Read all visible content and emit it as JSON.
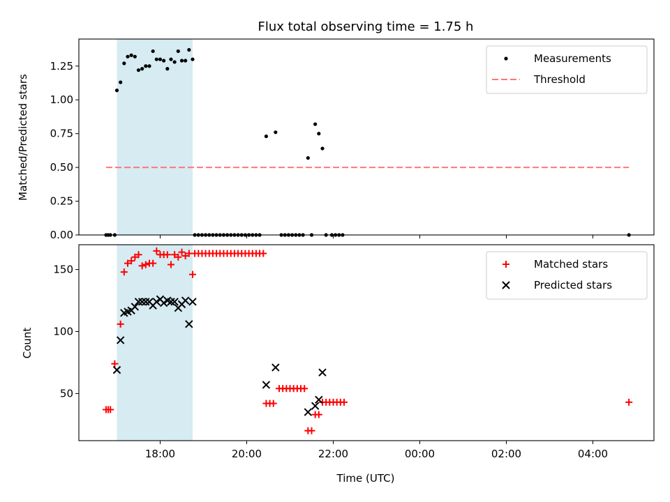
{
  "chart_data": [
    {
      "type": "scatter",
      "title": "Flux total observing time = 1.75 h",
      "xlabel": "",
      "ylabel": "Matched/Predicted stars",
      "ylim": [
        0,
        1.45
      ],
      "yticks": [
        "0.00",
        "0.25",
        "0.50",
        "0.75",
        "1.00",
        "1.25"
      ],
      "legend": {
        "position": "top-right",
        "entries": [
          "Measurements",
          "Threshold"
        ]
      },
      "threshold": {
        "value": 0.5,
        "x_start": "16:45",
        "x_end": "04:50",
        "color": "#ff7777"
      },
      "shaded_region": {
        "x_start": "17:00",
        "x_end": "18:45",
        "color": "#add8e6"
      },
      "series": [
        {
          "name": "Measurements",
          "marker": "dot",
          "color": "#000000",
          "points": [
            [
              "16:45",
              0
            ],
            [
              "16:48",
              0
            ],
            [
              "16:51",
              0
            ],
            [
              "16:57",
              0
            ],
            [
              "17:00",
              1.07
            ],
            [
              "17:05",
              1.13
            ],
            [
              "17:10",
              1.27
            ],
            [
              "17:15",
              1.32
            ],
            [
              "17:20",
              1.33
            ],
            [
              "17:25",
              1.32
            ],
            [
              "17:30",
              1.22
            ],
            [
              "17:35",
              1.23
            ],
            [
              "17:40",
              1.25
            ],
            [
              "17:45",
              1.25
            ],
            [
              "17:50",
              1.36
            ],
            [
              "17:55",
              1.3
            ],
            [
              "18:00",
              1.3
            ],
            [
              "18:05",
              1.29
            ],
            [
              "18:10",
              1.23
            ],
            [
              "18:15",
              1.3
            ],
            [
              "18:20",
              1.28
            ],
            [
              "18:25",
              1.36
            ],
            [
              "18:30",
              1.29
            ],
            [
              "18:35",
              1.29
            ],
            [
              "18:40",
              1.37
            ],
            [
              "18:45",
              1.3
            ],
            [
              "18:48",
              0
            ],
            [
              "18:53",
              0
            ],
            [
              "18:58",
              0
            ],
            [
              "19:03",
              0
            ],
            [
              "19:08",
              0
            ],
            [
              "19:13",
              0
            ],
            [
              "19:18",
              0
            ],
            [
              "19:23",
              0
            ],
            [
              "19:28",
              0
            ],
            [
              "19:33",
              0
            ],
            [
              "19:38",
              0
            ],
            [
              "19:43",
              0
            ],
            [
              "19:48",
              0
            ],
            [
              "19:53",
              0
            ],
            [
              "19:58",
              0
            ],
            [
              "20:03",
              0
            ],
            [
              "20:08",
              0
            ],
            [
              "20:13",
              0
            ],
            [
              "20:18",
              0
            ],
            [
              "20:27",
              0.73
            ],
            [
              "20:40",
              0.76
            ],
            [
              "20:48",
              0
            ],
            [
              "20:53",
              0
            ],
            [
              "20:58",
              0
            ],
            [
              "21:03",
              0
            ],
            [
              "21:08",
              0
            ],
            [
              "21:13",
              0
            ],
            [
              "21:18",
              0
            ],
            [
              "21:25",
              0.57
            ],
            [
              "21:30",
              0
            ],
            [
              "21:35",
              0.82
            ],
            [
              "21:40",
              0.75
            ],
            [
              "21:45",
              0.64
            ],
            [
              "21:50",
              0
            ],
            [
              "21:58",
              0
            ],
            [
              "22:03",
              0
            ],
            [
              "22:08",
              0
            ],
            [
              "22:13",
              0
            ],
            [
              "04:50",
              0
            ]
          ]
        }
      ]
    },
    {
      "type": "scatter",
      "title": "",
      "xlabel": "Time (UTC)",
      "ylabel": "Count",
      "ylim": [
        12,
        170
      ],
      "yticks": [
        "50",
        "100",
        "150"
      ],
      "xticks": [
        "18:00",
        "20:00",
        "22:00",
        "00:00",
        "02:00",
        "04:00"
      ],
      "legend": {
        "position": "top-right",
        "entries": [
          "Matched stars",
          "Predicted stars"
        ]
      },
      "shaded_region": {
        "x_start": "17:00",
        "x_end": "18:45",
        "color": "#add8e6"
      },
      "series": [
        {
          "name": "Matched stars",
          "marker": "plus",
          "color": "#ff0000",
          "points": [
            [
              "16:45",
              37
            ],
            [
              "16:48",
              37
            ],
            [
              "16:51",
              37
            ],
            [
              "16:57",
              74
            ],
            [
              "17:05",
              106
            ],
            [
              "17:10",
              148
            ],
            [
              "17:15",
              155
            ],
            [
              "17:20",
              157
            ],
            [
              "17:25",
              160
            ],
            [
              "17:30",
              162
            ],
            [
              "17:35",
              153
            ],
            [
              "17:40",
              154
            ],
            [
              "17:45",
              155
            ],
            [
              "17:50",
              155
            ],
            [
              "17:55",
              165
            ],
            [
              "18:00",
              162
            ],
            [
              "18:05",
              162
            ],
            [
              "18:10",
              162
            ],
            [
              "18:15",
              154
            ],
            [
              "18:20",
              162
            ],
            [
              "18:25",
              160
            ],
            [
              "18:30",
              164
            ],
            [
              "18:35",
              161
            ],
            [
              "18:40",
              163
            ],
            [
              "18:45",
              146
            ],
            [
              "18:48",
              163
            ],
            [
              "18:53",
              163
            ],
            [
              "18:58",
              163
            ],
            [
              "19:03",
              163
            ],
            [
              "19:08",
              163
            ],
            [
              "19:13",
              163
            ],
            [
              "19:18",
              163
            ],
            [
              "19:23",
              163
            ],
            [
              "19:28",
              163
            ],
            [
              "19:33",
              163
            ],
            [
              "19:38",
              163
            ],
            [
              "19:43",
              163
            ],
            [
              "19:48",
              163
            ],
            [
              "19:53",
              163
            ],
            [
              "19:58",
              163
            ],
            [
              "20:03",
              163
            ],
            [
              "20:08",
              163
            ],
            [
              "20:13",
              163
            ],
            [
              "20:18",
              163
            ],
            [
              "20:23",
              163
            ],
            [
              "20:27",
              42
            ],
            [
              "20:32",
              42
            ],
            [
              "20:37",
              42
            ],
            [
              "20:45",
              54
            ],
            [
              "20:50",
              54
            ],
            [
              "20:55",
              54
            ],
            [
              "21:00",
              54
            ],
            [
              "21:05",
              54
            ],
            [
              "21:10",
              54
            ],
            [
              "21:15",
              54
            ],
            [
              "21:20",
              54
            ],
            [
              "21:25",
              20
            ],
            [
              "21:30",
              20
            ],
            [
              "21:35",
              33
            ],
            [
              "21:40",
              33
            ],
            [
              "21:45",
              43
            ],
            [
              "21:50",
              43
            ],
            [
              "21:55",
              43
            ],
            [
              "22:00",
              43
            ],
            [
              "22:05",
              43
            ],
            [
              "22:10",
              43
            ],
            [
              "22:15",
              43
            ],
            [
              "04:50",
              43
            ]
          ]
        },
        {
          "name": "Predicted stars",
          "marker": "x",
          "color": "#000000",
          "points": [
            [
              "17:00",
              69
            ],
            [
              "17:05",
              93
            ],
            [
              "17:10",
              115
            ],
            [
              "17:15",
              116
            ],
            [
              "17:20",
              117
            ],
            [
              "17:25",
              120
            ],
            [
              "17:30",
              124
            ],
            [
              "17:35",
              124
            ],
            [
              "17:40",
              124
            ],
            [
              "17:45",
              124
            ],
            [
              "17:50",
              121
            ],
            [
              "17:55",
              124
            ],
            [
              "18:00",
              126
            ],
            [
              "18:05",
              123
            ],
            [
              "18:10",
              125
            ],
            [
              "18:15",
              124
            ],
            [
              "18:20",
              124
            ],
            [
              "18:25",
              119
            ],
            [
              "18:30",
              122
            ],
            [
              "18:35",
              125
            ],
            [
              "18:40",
              106
            ],
            [
              "18:45",
              124
            ],
            [
              "20:27",
              57
            ],
            [
              "20:40",
              71
            ],
            [
              "21:25",
              35
            ],
            [
              "21:35",
              40
            ],
            [
              "21:40",
              45
            ],
            [
              "21:45",
              67
            ]
          ]
        }
      ]
    }
  ]
}
